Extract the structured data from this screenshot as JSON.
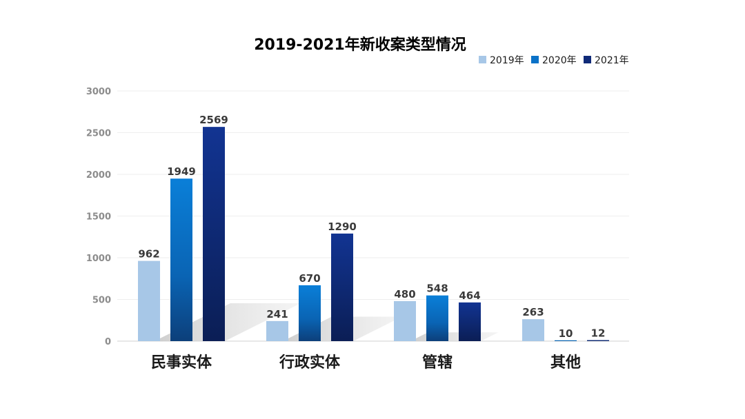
{
  "chart_data": {
    "type": "bar",
    "title": "2019-2021年新收案类型情况",
    "categories": [
      "民事实体",
      "行政实体",
      "管辖",
      "其他"
    ],
    "series": [
      {
        "name": "2019年",
        "values": [
          962,
          241,
          480,
          263
        ],
        "color": "#a7c7e7"
      },
      {
        "name": "2020年",
        "values": [
          1949,
          670,
          548,
          10
        ],
        "color": "#0a72c8"
      },
      {
        "name": "2021年",
        "values": [
          2569,
          1290,
          464,
          12
        ],
        "color": "#0f2a78"
      }
    ],
    "y_ticks": [
      0,
      500,
      1000,
      1500,
      2000,
      2500,
      3000
    ],
    "ylim": [
      0,
      3000
    ],
    "grid": true,
    "legend_position": "top-right",
    "data_labels": true
  }
}
